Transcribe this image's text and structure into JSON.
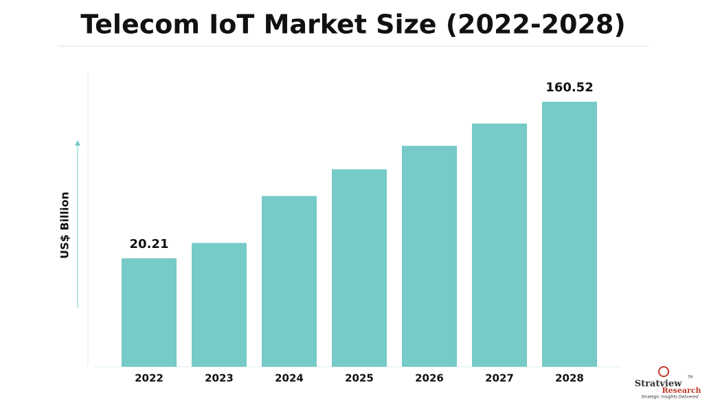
{
  "chart_data": {
    "type": "bar",
    "title": "Telecom IoT Market Size (2022-2028)",
    "y_label": "US$ Billion",
    "categories": [
      "2022",
      "2023",
      "2024",
      "2025",
      "2026",
      "2027",
      "2028"
    ],
    "values": [
      20.21,
      34,
      76,
      100,
      121,
      141,
      160.52
    ],
    "value_labels": [
      "20.21",
      null,
      null,
      null,
      null,
      null,
      "160.52"
    ],
    "color": "#76cac7",
    "ylim": [
      -77,
      184
    ]
  },
  "logo": {
    "name": "Stratview",
    "trademark": "TM",
    "sub": "Research",
    "tagline": "Strategic Insights Delivered"
  }
}
